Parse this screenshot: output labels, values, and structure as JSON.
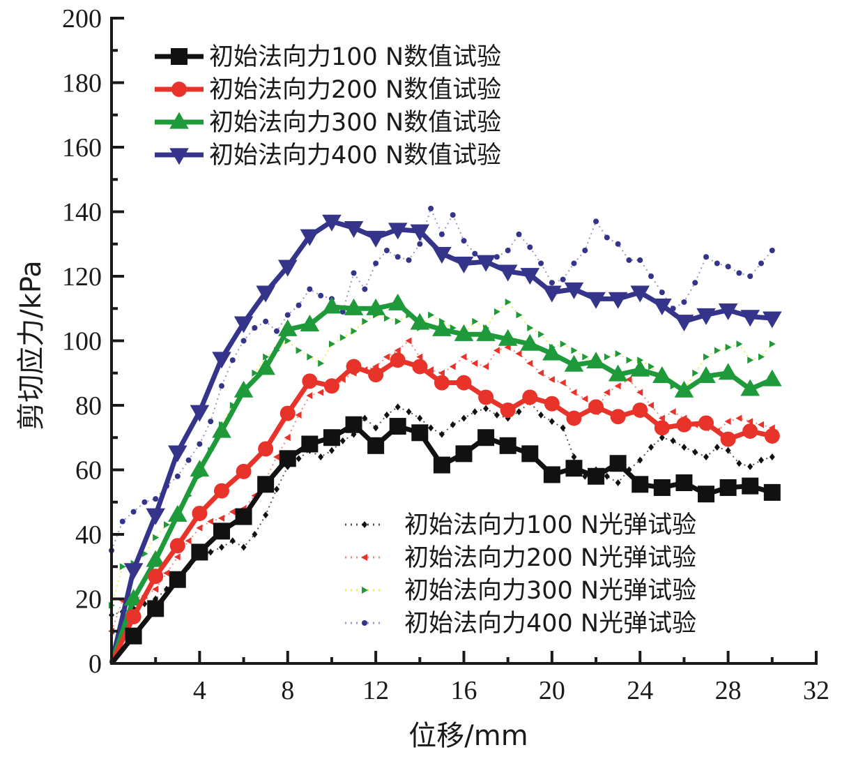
{
  "chart_data": {
    "type": "line",
    "title": "",
    "xlabel": "位移/mm",
    "ylabel": "剪切应力/kPa",
    "xlim": [
      0,
      32
    ],
    "ylim": [
      0,
      200
    ],
    "grid": false,
    "x_ticks": [
      4,
      8,
      12,
      16,
      20,
      24,
      28,
      32
    ],
    "x_tick_labels": [
      "4",
      "8",
      "12",
      "16",
      "20",
      "24",
      "28",
      "32"
    ],
    "y_ticks": [
      0,
      20,
      40,
      60,
      80,
      100,
      120,
      140,
      160,
      180,
      200
    ],
    "y_tick_labels": [
      "0",
      "20",
      "40",
      "60",
      "80",
      "100",
      "120",
      "140",
      "160",
      "180",
      "200"
    ],
    "legends": [
      {
        "placement": "top-left",
        "entries": [
          "初始法向力100 N数值试验",
          "初始法向力200 N数值试验",
          "初始法向力300 N数值试验",
          "初始法向力400 N数值试验"
        ]
      },
      {
        "placement": "bottom-right",
        "entries": [
          "初始法向力100 N光弹试验",
          "初始法向力200 N光弹试验",
          "初始法向力300 N光弹试验",
          "初始法向力400 N光弹试验"
        ]
      }
    ],
    "series": [
      {
        "name": "初始法向力100 N数值试验",
        "style": "solid",
        "marker": "square",
        "color": "#111111",
        "x": [
          0,
          1,
          2,
          3,
          4,
          5,
          6,
          7,
          8,
          9,
          10,
          11,
          12,
          13,
          14,
          15,
          16,
          17,
          18,
          19,
          20,
          21,
          22,
          23,
          24,
          25,
          26,
          27,
          28,
          29,
          30
        ],
        "y": [
          0,
          8.5,
          17,
          26,
          34.5,
          41,
          45.5,
          55.5,
          63.5,
          68,
          70,
          74,
          67.5,
          73.5,
          71.5,
          61.5,
          65,
          70,
          67.5,
          65,
          58.5,
          60.5,
          58,
          62,
          55.5,
          54.5,
          56,
          52.5,
          54.5,
          55,
          53
        ]
      },
      {
        "name": "初始法向力200 N数值试验",
        "style": "solid",
        "marker": "circle",
        "color": "#e8332a",
        "x": [
          0,
          1,
          2,
          3,
          4,
          5,
          6,
          7,
          8,
          9,
          10,
          11,
          12,
          13,
          14,
          15,
          16,
          17,
          18,
          19,
          20,
          21,
          22,
          23,
          24,
          25,
          26,
          27,
          28,
          29,
          30
        ],
        "y": [
          0,
          14.5,
          27,
          36.5,
          46.5,
          53.5,
          59.5,
          66.5,
          77.5,
          87.5,
          86,
          92,
          89.5,
          94,
          92,
          87,
          87,
          82.5,
          78.5,
          82.5,
          80.5,
          76,
          79.5,
          76.5,
          78.5,
          73,
          74,
          74.5,
          69.5,
          72,
          70.5
        ]
      },
      {
        "name": "初始法向力300 N数值试验",
        "style": "solid",
        "marker": "triangle-up",
        "color": "#1f9a3a",
        "x": [
          0,
          1,
          2,
          3,
          4,
          5,
          6,
          7,
          8,
          9,
          10,
          11,
          12,
          13,
          14,
          15,
          16,
          17,
          18,
          19,
          20,
          21,
          22,
          23,
          24,
          25,
          26,
          27,
          28,
          29,
          30
        ],
        "y": [
          0,
          20,
          32,
          46,
          60,
          72,
          84.5,
          91.5,
          103.5,
          105,
          110.5,
          110,
          110,
          111.5,
          105.5,
          103.5,
          102,
          102,
          100.5,
          99,
          96,
          92.5,
          93.5,
          89.5,
          91,
          89,
          84.5,
          89,
          90,
          85,
          88
        ]
      },
      {
        "name": "初始法向力400 N数值试验",
        "style": "solid",
        "marker": "triangle-down",
        "color": "#33348a",
        "x": [
          0,
          1,
          2,
          3,
          4,
          5,
          6,
          7,
          8,
          9,
          10,
          11,
          12,
          13,
          14,
          15,
          16,
          17,
          18,
          19,
          20,
          21,
          22,
          23,
          24,
          25,
          26,
          27,
          28,
          29,
          30
        ],
        "y": [
          0,
          29,
          46,
          65.5,
          78,
          94.5,
          105.5,
          115,
          123,
          132.5,
          137,
          135,
          132,
          134.5,
          134,
          127,
          124,
          124.5,
          121.5,
          120.5,
          115,
          116,
          113,
          113,
          115,
          111,
          106,
          108,
          109.5,
          107.5,
          107
        ]
      },
      {
        "name": "初始法向力100 N光弹试验",
        "style": "dotted",
        "marker": "diamond",
        "color": "#111111",
        "line_color": "#555555",
        "x": [
          0,
          0.5,
          1,
          1.5,
          2,
          2.5,
          3,
          3.5,
          4,
          4.5,
          5,
          5.5,
          6,
          6.5,
          7,
          7.5,
          8,
          8.5,
          9,
          9.5,
          10,
          10.5,
          11,
          11.5,
          12,
          12.5,
          13,
          13.5,
          14,
          14.5,
          15,
          15.5,
          16,
          16.5,
          17,
          17.5,
          18,
          18.5,
          19,
          19.5,
          20,
          20.5,
          21,
          21.5,
          22,
          22.5,
          23,
          23.5,
          24,
          24.5,
          25,
          25.5,
          26,
          26.5,
          27,
          27.5,
          28,
          28.5,
          29,
          29.5,
          30
        ],
        "y": [
          15,
          16,
          17,
          18.5,
          20,
          23,
          27,
          30,
          33,
          34.5,
          36,
          38,
          36,
          40,
          46,
          54,
          61,
          63.5,
          66,
          64,
          66,
          69,
          71,
          76,
          73,
          77,
          79.5,
          78,
          76,
          73,
          71,
          74,
          76,
          78,
          79,
          77,
          76,
          78,
          81,
          77,
          75,
          73,
          64,
          58,
          60,
          58,
          56,
          60,
          63,
          67,
          70,
          69,
          67,
          65.5,
          64,
          67,
          66,
          62,
          61,
          63,
          64
        ]
      },
      {
        "name": "初始法向力200 N光弹试验",
        "style": "dotted",
        "marker": "triangle-left",
        "color": "#e8332a",
        "line_color": "#f08a80",
        "x": [
          0,
          0.5,
          1,
          1.5,
          2,
          2.5,
          3,
          3.5,
          4,
          4.5,
          5,
          5.5,
          6,
          6.5,
          7,
          7.5,
          8,
          8.5,
          9,
          9.5,
          10,
          10.5,
          11,
          11.5,
          12,
          12.5,
          13,
          13.5,
          14,
          14.5,
          15,
          15.5,
          16,
          16.5,
          17,
          17.5,
          18,
          18.5,
          19,
          19.5,
          20,
          20.5,
          21,
          21.5,
          22,
          22.5,
          23,
          23.5,
          24,
          24.5,
          25,
          25.5,
          26,
          26.5,
          27,
          27.5,
          28,
          28.5,
          29,
          29.5,
          30
        ],
        "y": [
          10,
          19.5,
          20,
          21,
          23,
          28,
          33,
          38,
          42,
          44,
          45,
          47,
          48,
          52,
          57,
          64,
          70,
          77,
          83,
          84,
          85,
          88,
          90,
          91,
          92,
          95,
          97,
          100,
          95,
          91,
          90,
          92,
          95,
          93,
          92,
          97,
          98,
          96,
          93,
          90,
          88,
          87,
          84,
          82,
          78,
          84,
          86,
          88,
          84,
          80,
          76,
          78,
          76,
          74,
          73,
          72,
          75,
          76,
          75,
          74,
          73
        ]
      },
      {
        "name": "初始法向力300 N光弹试验",
        "style": "dotted",
        "marker": "triangle-right",
        "color": "#1f9a3a",
        "line_color": "#f2ee3c",
        "x": [
          0,
          0.5,
          1,
          1.5,
          2,
          2.5,
          3,
          3.5,
          4,
          4.5,
          5,
          5.5,
          6,
          6.5,
          7,
          7.5,
          8,
          8.5,
          9,
          9.5,
          10,
          10.5,
          11,
          11.5,
          12,
          12.5,
          13,
          13.5,
          14,
          14.5,
          15,
          15.5,
          16,
          16.5,
          17,
          17.5,
          18,
          18.5,
          19,
          19.5,
          20,
          20.5,
          21,
          21.5,
          22,
          22.5,
          23,
          23.5,
          24,
          24.5,
          25,
          25.5,
          26,
          26.5,
          27,
          27.5,
          28,
          28.5,
          29,
          29.5,
          30
        ],
        "y": [
          18,
          30,
          31,
          34,
          39,
          43,
          46,
          52,
          58,
          66,
          74,
          80,
          84,
          90,
          95,
          97,
          100,
          97,
          95,
          93,
          99,
          101,
          103,
          106,
          108,
          107,
          106,
          108,
          104,
          108,
          106,
          104,
          102,
          106,
          104,
          109,
          112,
          108,
          104,
          102,
          98,
          99,
          97,
          95,
          93,
          95,
          96,
          94,
          94,
          92,
          88,
          86,
          85,
          90,
          95,
          97,
          98,
          99,
          94,
          95,
          99
        ]
      },
      {
        "name": "初始法向力400 N光弹试验",
        "style": "dotted",
        "marker": "circle-small",
        "color": "#33348a",
        "line_color": "#9d95c8",
        "x": [
          0,
          0.5,
          1,
          1.5,
          2,
          2.5,
          3,
          3.5,
          4,
          4.5,
          5,
          5.5,
          6,
          6.5,
          7,
          7.5,
          8,
          8.5,
          9,
          9.5,
          10,
          10.5,
          11,
          11.5,
          12,
          12.5,
          13,
          13.5,
          14,
          14.5,
          15,
          15.5,
          16,
          16.5,
          17,
          17.5,
          18,
          18.5,
          19,
          19.5,
          20,
          20.5,
          21,
          21.5,
          22,
          22.5,
          23,
          23.5,
          24,
          24.5,
          25,
          25.5,
          26,
          26.5,
          27,
          27.5,
          28,
          28.5,
          29,
          29.5,
          30
        ],
        "y": [
          35,
          44,
          47,
          50,
          51,
          55,
          58,
          63,
          68,
          75,
          86,
          94,
          100,
          104,
          106,
          103,
          108,
          111,
          116,
          114,
          113,
          109,
          121,
          116,
          124,
          128,
          126,
          125,
          130,
          141,
          133,
          139,
          131,
          127,
          124,
          126,
          128,
          133,
          129,
          124,
          118,
          119,
          124,
          128,
          137,
          132,
          130,
          125,
          125,
          120,
          115,
          110,
          112,
          118,
          126,
          124,
          123,
          121,
          120,
          124,
          128
        ]
      }
    ]
  }
}
